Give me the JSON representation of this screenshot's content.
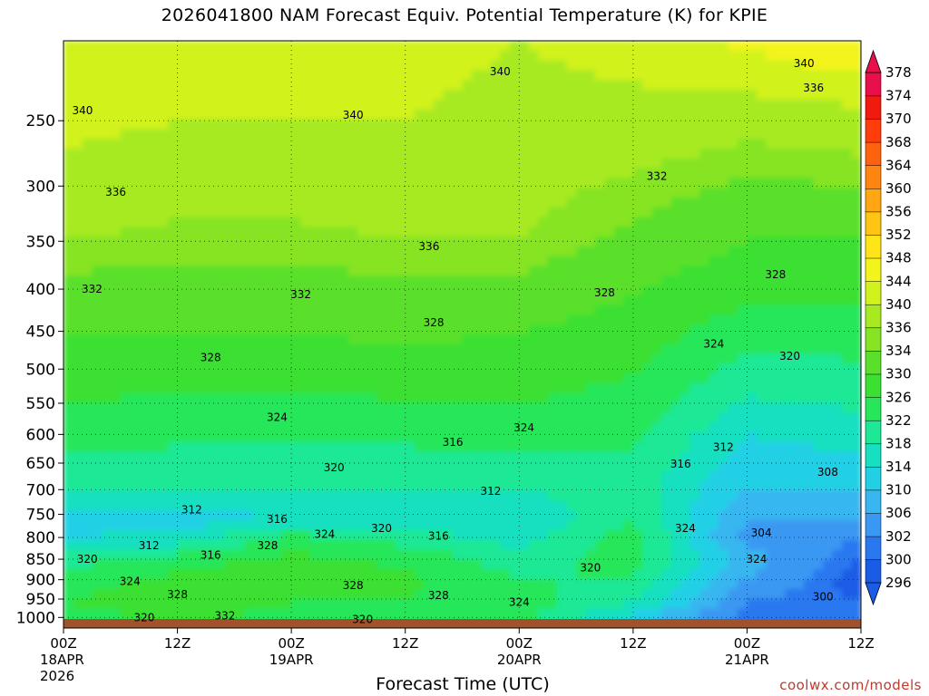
{
  "chart_data": {
    "type": "heatmap",
    "title": "2026041800 NAM Forecast Equiv. Potential Temperature (K) for KPIE",
    "xlabel": "Forecast Time (UTC)",
    "ylabel": "",
    "credit": "coolwx.com/models",
    "x_ticks": [
      {
        "hour": 0,
        "label": "00Z",
        "sub": [
          "18APR",
          "2026"
        ]
      },
      {
        "hour": 12,
        "label": "12Z",
        "sub": []
      },
      {
        "hour": 24,
        "label": "00Z",
        "sub": [
          "19APR"
        ]
      },
      {
        "hour": 36,
        "label": "12Z",
        "sub": []
      },
      {
        "hour": 48,
        "label": "00Z",
        "sub": [
          "20APR"
        ]
      },
      {
        "hour": 60,
        "label": "12Z",
        "sub": []
      },
      {
        "hour": 72,
        "label": "00Z",
        "sub": [
          "21APR"
        ]
      },
      {
        "hour": 84,
        "label": "12Z",
        "sub": []
      }
    ],
    "xlim": [
      0,
      84
    ],
    "y_ticks": [
      250,
      300,
      350,
      400,
      450,
      500,
      550,
      600,
      650,
      700,
      750,
      800,
      850,
      900,
      950,
      1000
    ],
    "ylim_hPa": [
      200,
      1030
    ],
    "colorbar": {
      "levels": [
        296,
        300,
        302,
        306,
        310,
        314,
        318,
        322,
        326,
        330,
        334,
        336,
        340,
        344,
        348,
        352,
        356,
        360,
        364,
        368,
        370,
        374,
        378
      ],
      "colors": [
        "#1a5ce6",
        "#2a78f0",
        "#3a98f2",
        "#38b6f0",
        "#22d0e6",
        "#16e0c0",
        "#1ce896",
        "#28e65a",
        "#3ae032",
        "#5ae02a",
        "#86e424",
        "#a8ea22",
        "#d2f21e",
        "#f2f41c",
        "#ffe418",
        "#ffc414",
        "#ffa612",
        "#ff8410",
        "#ff620e",
        "#ff3c0c",
        "#f01a0e",
        "#e8104a"
      ]
    },
    "field_columns": [
      {
        "hour": 0,
        "hPa": [
          200,
          250,
          350,
          450,
          600,
          700,
          760,
          800,
          850,
          900,
          960,
          1000
        ],
        "theta": [
          344,
          341,
          336,
          330,
          324,
          318,
          312,
          314,
          320,
          324,
          326,
          322
        ]
      },
      {
        "hour": 12,
        "hPa": [
          200,
          250,
          350,
          450,
          600,
          700,
          760,
          800,
          850,
          900,
          960,
          1000
        ],
        "theta": [
          344,
          340,
          335,
          330,
          323,
          318,
          312,
          315,
          324,
          327,
          330,
          328
        ]
      },
      {
        "hour": 24,
        "hPa": [
          200,
          250,
          350,
          450,
          600,
          700,
          760,
          800,
          850,
          900,
          960,
          1000
        ],
        "theta": [
          343,
          340,
          335,
          330,
          323,
          318,
          314,
          324,
          327,
          329,
          326,
          323
        ]
      },
      {
        "hour": 36,
        "hPa": [
          200,
          250,
          350,
          450,
          600,
          700,
          760,
          800,
          850,
          900,
          960,
          1000
        ],
        "theta": [
          342,
          340,
          336,
          331,
          323,
          318,
          316,
          320,
          325,
          327,
          326,
          322
        ]
      },
      {
        "hour": 48,
        "hPa": [
          200,
          250,
          350,
          450,
          600,
          700,
          760,
          800,
          850,
          900,
          960,
          1000
        ],
        "theta": [
          340,
          338,
          336,
          330,
          324,
          318,
          314,
          316,
          320,
          322,
          324,
          324
        ]
      },
      {
        "hour": 60,
        "hPa": [
          200,
          250,
          350,
          450,
          600,
          700,
          760,
          800,
          850,
          900,
          960,
          1000
        ],
        "theta": [
          342,
          338,
          333,
          328,
          323,
          320,
          322,
          324,
          324,
          322,
          318,
          312
        ]
      },
      {
        "hour": 72,
        "hPa": [
          200,
          250,
          350,
          450,
          600,
          700,
          760,
          800,
          850,
          900,
          960,
          1000
        ],
        "theta": [
          345,
          337,
          330,
          324,
          314,
          310,
          306,
          304,
          308,
          306,
          302,
          300
        ]
      },
      {
        "hour": 84,
        "hPa": [
          200,
          250,
          350,
          450,
          600,
          700,
          760,
          800,
          850,
          900,
          960,
          1000
        ],
        "theta": [
          348,
          338,
          330,
          324,
          316,
          310,
          306,
          302,
          300,
          298,
          300,
          302
        ]
      }
    ],
    "contour_labels": [
      {
        "text": "340",
        "hour": 2.0,
        "hPa": 243
      },
      {
        "text": "340",
        "hour": 30.5,
        "hPa": 246
      },
      {
        "text": "340",
        "hour": 46.0,
        "hPa": 218
      },
      {
        "text": "340",
        "hour": 78.0,
        "hPa": 213
      },
      {
        "text": "336",
        "hour": 79.0,
        "hPa": 228
      },
      {
        "text": "336",
        "hour": 5.5,
        "hPa": 305
      },
      {
        "text": "336",
        "hour": 38.5,
        "hPa": 355
      },
      {
        "text": "332",
        "hour": 3.0,
        "hPa": 400
      },
      {
        "text": "332",
        "hour": 25.0,
        "hPa": 406
      },
      {
        "text": "332",
        "hour": 62.5,
        "hPa": 292
      },
      {
        "text": "328",
        "hour": 15.5,
        "hPa": 484
      },
      {
        "text": "328",
        "hour": 39.0,
        "hPa": 439
      },
      {
        "text": "328",
        "hour": 57.0,
        "hPa": 404
      },
      {
        "text": "328",
        "hour": 75.0,
        "hPa": 384
      },
      {
        "text": "324",
        "hour": 22.5,
        "hPa": 572
      },
      {
        "text": "324",
        "hour": 48.5,
        "hPa": 589
      },
      {
        "text": "324",
        "hour": 68.5,
        "hPa": 466
      },
      {
        "text": "320",
        "hour": 76.5,
        "hPa": 482
      },
      {
        "text": "320",
        "hour": 28.5,
        "hPa": 658
      },
      {
        "text": "316",
        "hour": 41.0,
        "hPa": 613
      },
      {
        "text": "312",
        "hour": 45.0,
        "hPa": 703
      },
      {
        "text": "312",
        "hour": 69.5,
        "hPa": 622
      },
      {
        "text": "316",
        "hour": 65.0,
        "hPa": 652
      },
      {
        "text": "308",
        "hour": 80.5,
        "hPa": 667
      },
      {
        "text": "312",
        "hour": 13.5,
        "hPa": 740
      },
      {
        "text": "316",
        "hour": 22.5,
        "hPa": 760
      },
      {
        "text": "320",
        "hour": 33.5,
        "hPa": 780
      },
      {
        "text": "324",
        "hour": 27.5,
        "hPa": 793
      },
      {
        "text": "316",
        "hour": 39.5,
        "hPa": 797
      },
      {
        "text": "312",
        "hour": 9.0,
        "hPa": 818
      },
      {
        "text": "328",
        "hour": 21.5,
        "hPa": 818
      },
      {
        "text": "316",
        "hour": 15.5,
        "hPa": 840
      },
      {
        "text": "320",
        "hour": 2.5,
        "hPa": 850
      },
      {
        "text": "324",
        "hour": 65.5,
        "hPa": 780
      },
      {
        "text": "304",
        "hour": 73.5,
        "hPa": 790
      },
      {
        "text": "324",
        "hour": 73.0,
        "hPa": 850
      },
      {
        "text": "320",
        "hour": 55.5,
        "hPa": 870
      },
      {
        "text": "324",
        "hour": 7.0,
        "hPa": 904
      },
      {
        "text": "328",
        "hour": 12.0,
        "hPa": 938
      },
      {
        "text": "328",
        "hour": 30.5,
        "hPa": 915
      },
      {
        "text": "328",
        "hour": 39.5,
        "hPa": 940
      },
      {
        "text": "324",
        "hour": 48.0,
        "hPa": 958
      },
      {
        "text": "300",
        "hour": 80.0,
        "hPa": 944
      },
      {
        "text": "320",
        "hour": 8.5,
        "hPa": 1000
      },
      {
        "text": "332",
        "hour": 17.0,
        "hPa": 995
      },
      {
        "text": "320",
        "hour": 31.5,
        "hPa": 1006
      }
    ]
  }
}
